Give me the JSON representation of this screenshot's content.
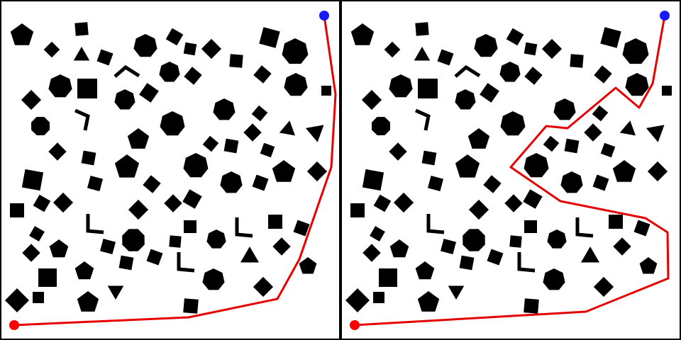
{
  "colors": {
    "background": "#ffffff",
    "frame": "#000000",
    "obstacle": "#000000",
    "path": "#e60000",
    "start": "#ff0000",
    "goal": "#1a1aff"
  },
  "panels": [
    {
      "id": "left",
      "start_marker": "start-dot",
      "goal_marker": "goal-dot"
    },
    {
      "id": "right",
      "start_marker": "start-dot",
      "goal_marker": "goal-dot"
    }
  ]
}
